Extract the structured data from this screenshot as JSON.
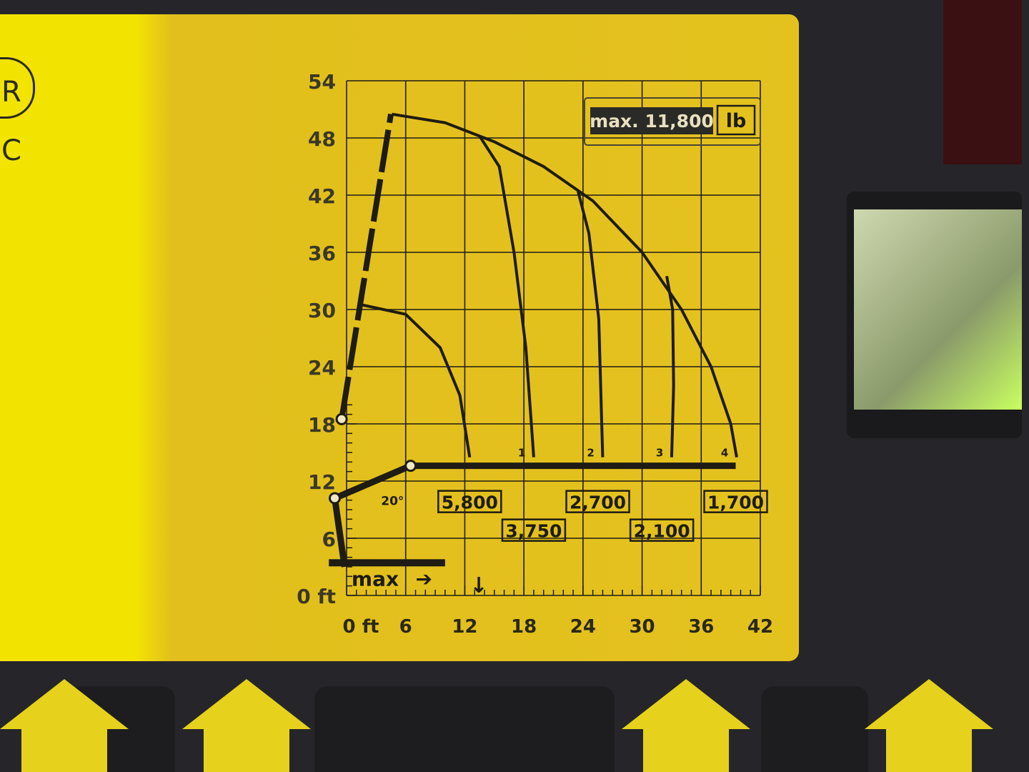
{
  "chart_data": {
    "type": "line",
    "title": "",
    "x_unit_label": "ft",
    "y_unit_label": "ft",
    "xlim": [
      0,
      42
    ],
    "ylim": [
      0,
      54
    ],
    "grid": true,
    "x_ticks": [
      "0 ft",
      "6",
      "12",
      "18",
      "24",
      "30",
      "36",
      "42"
    ],
    "y_ticks": [
      "0 ft",
      "6",
      "12",
      "18",
      "24",
      "30",
      "36",
      "42",
      "48",
      "54"
    ],
    "max_capacity": {
      "text": "max. 11,800",
      "unit": "lb"
    },
    "boom_angle_label": "20°",
    "stabilizer_label": "max",
    "series": [
      {
        "extension": "0",
        "load": "5,800",
        "points": [
          [
            1.5,
            30.5
          ],
          [
            6,
            29.5
          ],
          [
            9.5,
            26
          ],
          [
            11.5,
            21
          ],
          [
            12.5,
            14.5
          ]
        ]
      },
      {
        "extension": "1",
        "load": "3,750",
        "points": [
          [
            13.5,
            48.2
          ],
          [
            15.5,
            45
          ],
          [
            17,
            36
          ],
          [
            18.2,
            26
          ],
          [
            19,
            14.5
          ]
        ]
      },
      {
        "extension": "2",
        "load": "2,700",
        "points": [
          [
            23.5,
            42.4
          ],
          [
            24.6,
            38
          ],
          [
            25.6,
            29
          ],
          [
            26,
            14.5
          ]
        ]
      },
      {
        "extension": "3",
        "load": "2,100",
        "points": [
          [
            32.5,
            33.5
          ],
          [
            33.1,
            30
          ],
          [
            33.2,
            22
          ],
          [
            33,
            14.5
          ]
        ]
      },
      {
        "extension": "4",
        "load": "1,700",
        "points": [
          [
            4.6,
            50.5
          ],
          [
            10,
            49.6
          ],
          [
            15,
            47.6
          ],
          [
            20,
            45
          ],
          [
            25,
            41.4
          ],
          [
            30,
            36
          ],
          [
            34,
            30
          ],
          [
            37,
            24
          ],
          [
            39,
            18
          ],
          [
            39.6,
            14.5
          ]
        ]
      }
    ]
  },
  "logo_text": "R C"
}
